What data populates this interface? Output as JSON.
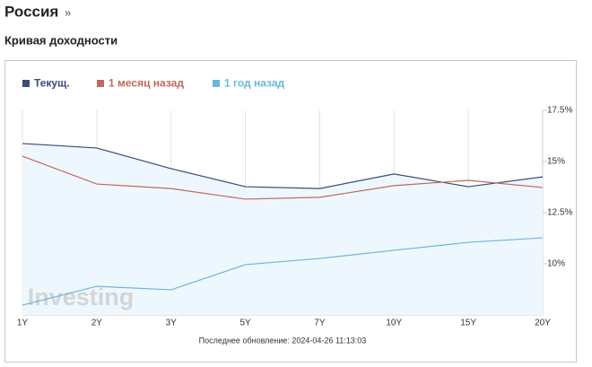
{
  "header": {
    "title": "Россия",
    "arrow": "»",
    "subtitle": "Кривая доходности"
  },
  "chart_data": {
    "type": "line",
    "categories": [
      "1Y",
      "2Y",
      "3Y",
      "5Y",
      "7Y",
      "10Y",
      "15Y",
      "20Y"
    ],
    "series": [
      {
        "name": "Текущ.",
        "color": "#3b4a78",
        "values": [
          15.88,
          15.66,
          14.65,
          13.77,
          13.68,
          14.39,
          13.77,
          14.25
        ],
        "area": true
      },
      {
        "name": "1 месяц назад",
        "color": "#c2675c",
        "values": [
          15.26,
          13.9,
          13.68,
          13.16,
          13.25,
          13.82,
          14.08,
          13.73
        ]
      },
      {
        "name": "1 год назад",
        "color": "#6cb6d6",
        "values": [
          7.98,
          8.9,
          8.73,
          9.96,
          10.26,
          10.66,
          11.05,
          11.27
        ]
      }
    ],
    "ylim": [
      7.5,
      17.5
    ],
    "yticks": [
      {
        "value": 17.5,
        "label": "17.5%"
      },
      {
        "value": 15,
        "label": "15%"
      },
      {
        "value": 12.5,
        "label": "12.5%"
      },
      {
        "value": 10,
        "label": "10%"
      }
    ],
    "y_axis_side": "right",
    "grid": false,
    "watermark": "Investing",
    "footnote": "Последнее обновление: 2024-04-26 11:13:03"
  }
}
